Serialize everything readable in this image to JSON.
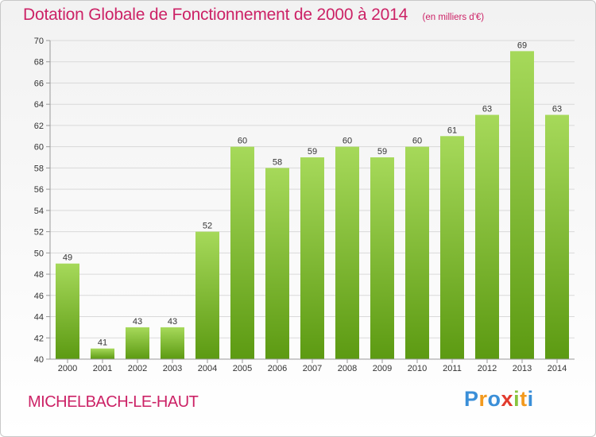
{
  "header": {
    "title": "Dotation Globale de Fonctionnement de 2000 à 2014",
    "unit": "(en milliers d'€)"
  },
  "footer": {
    "commune": "MICHELBACH-LE-HAUT",
    "logo": {
      "letters": [
        "P",
        "r",
        "o",
        "x",
        "i",
        "t",
        "i"
      ]
    }
  },
  "colors": {
    "title": "#cc2266",
    "bar_light": "#a6d95a",
    "bar_dark": "#5c9a12",
    "grid": "#d9d9d9",
    "axis_text": "#333333"
  },
  "chart_data": {
    "type": "bar",
    "title": "Dotation Globale de Fonctionnement de 2000 à 2014",
    "xlabel": "",
    "ylabel": "",
    "categories": [
      "2000",
      "2001",
      "2002",
      "2003",
      "2004",
      "2005",
      "2006",
      "2007",
      "2008",
      "2009",
      "2010",
      "2011",
      "2012",
      "2013",
      "2014"
    ],
    "values": [
      49,
      41,
      43,
      43,
      52,
      60,
      58,
      59,
      60,
      59,
      60,
      61,
      63,
      69,
      63
    ],
    "ylim": [
      40,
      70
    ],
    "yticks": [
      40,
      42,
      44,
      46,
      48,
      50,
      52,
      54,
      56,
      58,
      60,
      62,
      64,
      66,
      68,
      70
    ],
    "grid": true,
    "legend": "none"
  }
}
